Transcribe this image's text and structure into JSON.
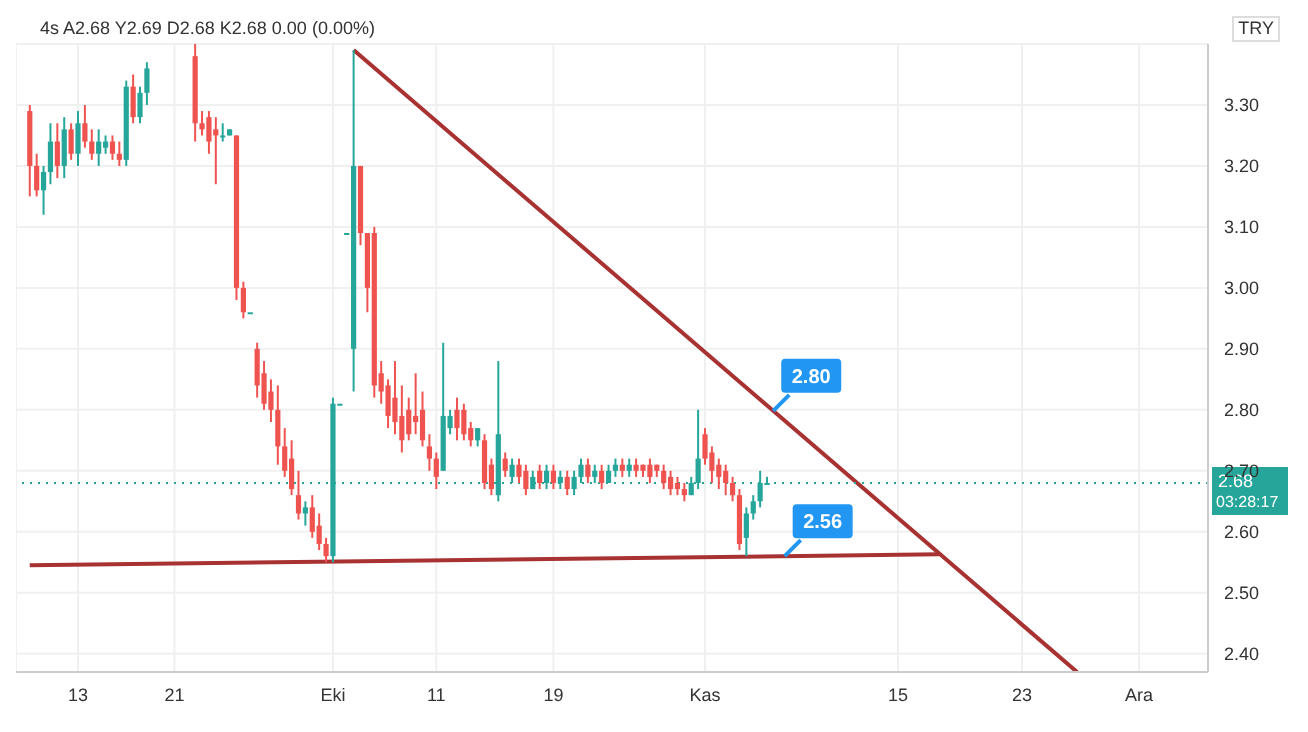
{
  "chart_data": {
    "type": "candlestick",
    "subtitle": "4s  A2.68 Y2.69 D2.68 K2.68 0.00 (0.00%)",
    "categories": [
      null,
      null,
      null,
      null,
      null,
      null,
      null,
      "13",
      null,
      null,
      null,
      null,
      null,
      null,
      null,
      null,
      null,
      null,
      null,
      null,
      null,
      "21",
      null,
      null,
      null,
      null,
      null,
      null,
      null,
      null,
      null,
      null,
      null,
      null,
      null,
      null,
      null,
      null,
      null,
      null,
      null,
      null,
      null,
      null,
      "Eki",
      null,
      null,
      null,
      null,
      null,
      null,
      null,
      null,
      null,
      null,
      null,
      null,
      null,
      null,
      "11",
      null,
      null,
      null,
      null,
      null,
      null,
      null,
      null,
      null,
      null,
      null,
      null,
      null,
      null,
      null,
      null,
      "19",
      null,
      null,
      null,
      null,
      null,
      null,
      null,
      null,
      null,
      null,
      null,
      null,
      null,
      null,
      null,
      null,
      null,
      null,
      null,
      null,
      null,
      "Kas",
      null,
      null,
      null,
      null,
      null,
      null,
      null,
      null,
      null,
      null,
      null,
      null,
      null,
      null,
      null,
      null,
      null,
      null,
      null,
      null,
      null,
      null,
      null,
      null,
      null,
      null,
      null,
      "15",
      null,
      null,
      null,
      null,
      null,
      null,
      null,
      null,
      null,
      null,
      null,
      null,
      null,
      null,
      null,
      null,
      null,
      "23",
      null,
      null,
      null,
      null,
      null,
      null,
      null,
      null,
      null,
      null,
      null,
      null,
      null,
      null,
      null,
      null,
      "Ara",
      null,
      null,
      null,
      null,
      null,
      null,
      null,
      null,
      null,
      null
    ],
    "ohlc": [
      [
        3.29,
        3.3,
        3.15,
        3.2
      ],
      [
        3.2,
        3.22,
        3.15,
        3.16
      ],
      [
        3.16,
        3.2,
        3.12,
        3.19
      ],
      [
        3.19,
        3.27,
        3.17,
        3.24
      ],
      [
        3.24,
        3.27,
        3.18,
        3.2
      ],
      [
        3.2,
        3.28,
        3.18,
        3.26
      ],
      [
        3.26,
        3.27,
        3.21,
        3.22
      ],
      [
        3.22,
        3.29,
        3.2,
        3.27
      ],
      [
        3.27,
        3.3,
        3.23,
        3.24
      ],
      [
        3.24,
        3.26,
        3.21,
        3.22
      ],
      [
        3.22,
        3.26,
        3.2,
        3.24
      ],
      [
        3.23,
        3.25,
        3.22,
        3.24
      ],
      [
        3.24,
        3.25,
        3.21,
        3.22
      ],
      [
        3.22,
        3.24,
        3.2,
        3.21
      ],
      [
        3.21,
        3.34,
        3.2,
        3.33
      ],
      [
        3.33,
        3.35,
        3.27,
        3.28
      ],
      [
        3.28,
        3.33,
        3.27,
        3.32
      ],
      [
        3.32,
        3.37,
        3.3,
        3.36
      ],
      null,
      null,
      null,
      null,
      null,
      null,
      [
        3.38,
        3.4,
        3.24,
        3.27
      ],
      [
        3.27,
        3.29,
        3.25,
        3.26
      ],
      [
        3.28,
        3.29,
        3.22,
        3.24
      ],
      [
        3.26,
        3.28,
        3.17,
        3.25
      ],
      [
        3.25,
        3.27,
        3.24,
        3.25
      ],
      [
        3.25,
        3.26,
        3.25,
        3.26
      ],
      [
        3.25,
        3.25,
        2.98,
        3.0
      ],
      [
        3.0,
        3.01,
        2.95,
        2.96
      ],
      [
        2.96,
        2.96,
        2.96,
        2.96
      ],
      [
        2.9,
        2.91,
        2.82,
        2.84
      ],
      [
        2.86,
        2.88,
        2.8,
        2.81
      ],
      [
        2.83,
        2.85,
        2.78,
        2.8
      ],
      [
        2.8,
        2.84,
        2.71,
        2.74
      ],
      [
        2.74,
        2.77,
        2.69,
        2.7
      ],
      [
        2.72,
        2.75,
        2.66,
        2.67
      ],
      [
        2.66,
        2.7,
        2.62,
        2.63
      ],
      [
        2.63,
        2.65,
        2.61,
        2.64
      ],
      [
        2.64,
        2.66,
        2.59,
        2.6
      ],
      [
        2.61,
        2.63,
        2.57,
        2.58
      ],
      [
        2.58,
        2.59,
        2.55,
        2.56
      ],
      [
        2.56,
        2.82,
        2.55,
        2.81
      ],
      [
        2.81,
        2.81,
        2.81,
        2.81
      ],
      [
        3.09,
        3.09,
        3.09,
        3.09
      ],
      [
        2.9,
        3.39,
        2.83,
        3.2
      ],
      [
        3.2,
        3.2,
        3.07,
        3.09
      ],
      [
        3.09,
        3.09,
        2.96,
        3.0
      ],
      [
        3.09,
        3.1,
        2.82,
        2.84
      ],
      [
        2.86,
        2.88,
        2.81,
        2.83
      ],
      [
        2.84,
        2.85,
        2.77,
        2.79
      ],
      [
        2.82,
        2.88,
        2.76,
        2.78
      ],
      [
        2.79,
        2.84,
        2.73,
        2.75
      ],
      [
        2.8,
        2.82,
        2.75,
        2.76
      ],
      [
        2.79,
        2.86,
        2.76,
        2.78
      ],
      [
        2.8,
        2.83,
        2.74,
        2.75
      ],
      [
        2.74,
        2.76,
        2.7,
        2.72
      ],
      [
        2.72,
        2.73,
        2.67,
        2.69
      ],
      [
        2.7,
        2.91,
        2.7,
        2.79
      ],
      [
        2.77,
        2.8,
        2.76,
        2.79
      ],
      [
        2.8,
        2.82,
        2.75,
        2.77
      ],
      [
        2.8,
        2.81,
        2.75,
        2.76
      ],
      [
        2.77,
        2.78,
        2.74,
        2.75
      ],
      [
        2.75,
        2.77,
        2.74,
        2.77
      ],
      [
        2.75,
        2.76,
        2.67,
        2.68
      ],
      [
        2.71,
        2.72,
        2.66,
        2.67
      ],
      [
        2.66,
        2.88,
        2.65,
        2.76
      ],
      [
        2.72,
        2.73,
        2.69,
        2.7
      ],
      [
        2.69,
        2.72,
        2.68,
        2.71
      ],
      [
        2.71,
        2.72,
        2.68,
        2.69
      ],
      [
        2.7,
        2.71,
        2.66,
        2.67
      ],
      [
        2.67,
        2.7,
        2.67,
        2.69
      ],
      [
        2.7,
        2.71,
        2.67,
        2.68
      ],
      [
        2.68,
        2.71,
        2.67,
        2.7
      ],
      [
        2.7,
        2.71,
        2.67,
        2.68
      ],
      [
        2.68,
        2.7,
        2.67,
        2.69
      ],
      [
        2.69,
        2.7,
        2.66,
        2.67
      ],
      [
        2.67,
        2.7,
        2.66,
        2.69
      ],
      [
        2.69,
        2.72,
        2.68,
        2.71
      ],
      [
        2.71,
        2.72,
        2.68,
        2.69
      ],
      [
        2.69,
        2.71,
        2.68,
        2.7
      ],
      [
        2.7,
        2.71,
        2.67,
        2.68
      ],
      [
        2.68,
        2.71,
        2.68,
        2.7
      ],
      [
        2.7,
        2.72,
        2.69,
        2.71
      ],
      [
        2.71,
        2.72,
        2.69,
        2.7
      ],
      [
        2.7,
        2.72,
        2.69,
        2.71
      ],
      [
        2.71,
        2.72,
        2.69,
        2.7
      ],
      [
        2.71,
        2.71,
        2.69,
        2.7
      ],
      [
        2.71,
        2.72,
        2.68,
        2.69
      ],
      [
        2.71,
        2.71,
        2.69,
        2.7
      ],
      [
        2.7,
        2.71,
        2.67,
        2.68
      ],
      [
        2.69,
        2.7,
        2.66,
        2.67
      ],
      [
        2.68,
        2.69,
        2.66,
        2.67
      ],
      [
        2.67,
        2.68,
        2.65,
        2.66
      ],
      [
        2.66,
        2.69,
        2.66,
        2.68
      ],
      [
        2.68,
        2.8,
        2.67,
        2.72
      ],
      [
        2.76,
        2.77,
        2.71,
        2.72
      ],
      [
        2.73,
        2.74,
        2.68,
        2.7
      ],
      [
        2.71,
        2.72,
        2.67,
        2.69
      ],
      [
        2.7,
        2.71,
        2.66,
        2.68
      ],
      [
        2.68,
        2.69,
        2.65,
        2.66
      ],
      [
        2.66,
        2.67,
        2.57,
        2.58
      ],
      [
        2.59,
        2.64,
        2.56,
        2.63
      ],
      [
        2.63,
        2.66,
        2.62,
        2.65
      ],
      [
        2.65,
        2.7,
        2.64,
        2.68
      ],
      [
        2.68,
        2.69,
        2.68,
        2.68
      ],
      null,
      null,
      null,
      null,
      null,
      null,
      null,
      null,
      null,
      null,
      null,
      null,
      null,
      null,
      null,
      null,
      null,
      null,
      null,
      null,
      null,
      null,
      null,
      null,
      null,
      null,
      null,
      null,
      null,
      null,
      null,
      null,
      null,
      null,
      null,
      null,
      null,
      null,
      null,
      null,
      null,
      null,
      null,
      null,
      null,
      null,
      null,
      null,
      null,
      null,
      null,
      null,
      null,
      null,
      null,
      null,
      null,
      null,
      null,
      null,
      null,
      null,
      null,
      null
    ],
    "colors": [
      "#ef5350",
      "#ef5350",
      "#26a69a",
      "#26a69a",
      "#ef5350",
      "#26a69a",
      "#ef5350",
      "#26a69a",
      "#ef5350",
      "#ef5350",
      "#26a69a",
      "#26a69a",
      "#ef5350",
      "#ef5350",
      "#26a69a",
      "#ef5350",
      "#26a69a",
      "#26a69a",
      null,
      null,
      null,
      null,
      null,
      null,
      "#ef5350",
      "#ef5350",
      "#ef5350",
      "#ef5350",
      "#26a69a",
      "#26a69a",
      "#ef5350",
      "#ef5350",
      "#26a69a",
      "#ef5350",
      "#ef5350",
      "#ef5350",
      "#ef5350",
      "#ef5350",
      "#ef5350",
      "#ef5350",
      "#26a69a",
      "#ef5350",
      "#ef5350",
      "#ef5350",
      "#26a69a",
      "#26a69a",
      "#26a69a",
      "#26a69a",
      "#ef5350",
      "#ef5350",
      "#ef5350",
      "#ef5350",
      "#ef5350",
      "#ef5350",
      "#ef5350",
      "#ef5350",
      "#ef5350",
      "#ef5350",
      "#ef5350",
      "#ef5350",
      "#26a69a",
      "#26a69a",
      "#ef5350",
      "#ef5350",
      "#ef5350",
      "#26a69a",
      "#ef5350",
      "#ef5350",
      "#26a69a",
      "#ef5350",
      "#26a69a",
      "#ef5350",
      "#ef5350",
      "#26a69a",
      "#ef5350",
      "#26a69a",
      "#ef5350",
      "#26a69a",
      "#ef5350",
      "#26a69a",
      "#26a69a",
      "#ef5350",
      "#26a69a",
      "#ef5350",
      "#26a69a",
      "#26a69a",
      "#ef5350",
      "#26a69a",
      "#ef5350",
      "#ef5350",
      "#ef5350",
      "#ef5350",
      "#ef5350",
      "#ef5350",
      "#ef5350",
      "#ef5350",
      "#26a69a",
      "#26a69a",
      "#ef5350",
      "#ef5350",
      "#ef5350",
      "#ef5350",
      "#ef5350",
      "#ef5350",
      "#26a69a",
      "#26a69a",
      "#26a69a",
      "#26a69a",
      null,
      null,
      null,
      null,
      null,
      null,
      null,
      null,
      null,
      null,
      null,
      null,
      null,
      null,
      null,
      null,
      null,
      null,
      null,
      null,
      null,
      null,
      null,
      null,
      null,
      null,
      null,
      null,
      null,
      null,
      null,
      null,
      null,
      null,
      null,
      null,
      null,
      null,
      null,
      null,
      null,
      null,
      null,
      null,
      null,
      null,
      null,
      null,
      null,
      null,
      null,
      null,
      null,
      null,
      null,
      null,
      null,
      null,
      null,
      null,
      null,
      null,
      null,
      null
    ],
    "series": [
      {
        "type": "line",
        "color": "#a83232",
        "values": [
          null,
          null,
          null,
          null,
          null,
          null,
          null,
          null,
          null,
          null,
          null,
          null,
          null,
          null,
          null,
          null,
          null,
          null,
          null,
          null,
          null,
          null,
          null,
          null,
          null,
          null,
          null,
          null,
          null,
          null,
          null,
          null,
          null,
          null,
          null,
          null,
          null,
          null,
          null,
          null,
          null,
          null,
          null,
          null,
          null,
          null,
          null,
          3.39,
          null,
          null,
          null,
          null,
          null,
          null,
          null,
          null,
          null,
          null,
          null,
          null,
          null,
          null,
          null,
          null,
          null,
          null,
          null,
          null,
          null,
          null,
          null,
          null,
          null,
          null,
          null,
          null,
          null,
          null,
          null,
          null,
          null,
          null,
          null,
          null,
          null,
          null,
          null,
          null,
          null,
          null,
          null,
          null,
          null,
          null,
          null,
          null,
          null,
          null,
          null,
          null,
          null,
          null,
          null,
          null,
          null,
          null,
          null,
          null,
          null,
          null,
          null,
          null,
          null,
          null,
          null,
          null,
          null,
          null,
          null,
          null,
          null,
          null,
          null,
          null,
          null,
          null,
          null,
          null,
          null,
          null,
          null,
          null,
          null,
          null,
          null,
          null,
          null,
          null,
          null,
          null,
          null,
          null,
          null,
          null,
          null,
          null,
          null,
          null,
          null,
          null,
          null,
          null,
          2.37,
          null,
          null,
          null,
          null,
          null,
          null,
          null,
          null,
          null,
          null,
          null,
          null,
          null,
          null,
          null,
          null,
          null,
          null,
          null
        ]
      },
      {
        "type": "line",
        "color": "#a83232",
        "values": [
          2.545,
          null,
          null,
          null,
          null,
          null,
          null,
          null,
          null,
          null,
          null,
          null,
          null,
          null,
          null,
          null,
          null,
          null,
          null,
          null,
          null,
          null,
          null,
          null,
          null,
          null,
          null,
          null,
          null,
          null,
          null,
          null,
          null,
          null,
          null,
          null,
          null,
          null,
          null,
          null,
          null,
          null,
          null,
          null,
          null,
          null,
          null,
          null,
          null,
          null,
          null,
          null,
          null,
          null,
          null,
          null,
          null,
          null,
          null,
          null,
          null,
          null,
          null,
          null,
          null,
          null,
          null,
          null,
          null,
          null,
          null,
          null,
          null,
          null,
          null,
          null,
          null,
          null,
          null,
          null,
          null,
          null,
          null,
          null,
          null,
          null,
          null,
          null,
          null,
          null,
          null,
          null,
          null,
          null,
          null,
          null,
          null,
          null,
          null,
          null,
          null,
          null,
          null,
          null,
          null,
          null,
          null,
          null,
          null,
          null,
          null,
          null,
          null,
          null,
          null,
          null,
          null,
          null,
          null,
          null,
          null,
          null,
          null,
          null,
          null,
          null,
          null,
          null,
          null,
          null,
          null,
          null,
          2.563,
          null,
          null,
          null,
          null,
          null,
          null,
          null,
          null,
          null,
          null,
          null,
          null,
          null,
          null,
          null,
          null,
          null,
          null,
          null,
          null,
          null,
          null,
          null,
          null,
          null,
          null,
          null,
          null,
          null,
          null,
          null,
          null,
          null,
          null,
          null,
          null,
          null,
          null,
          null
        ]
      }
    ],
    "ylim": [
      2.37,
      3.4
    ],
    "yticks": [
      {
        "value": 2.4,
        "label": "2.40"
      },
      {
        "value": 2.5,
        "label": "2.50"
      },
      {
        "value": 2.6,
        "label": "2.60"
      },
      {
        "value": 2.7,
        "label": "2.70"
      },
      {
        "value": 2.8,
        "label": "2.80"
      },
      {
        "value": 2.9,
        "label": "2.90"
      },
      {
        "value": 3.0,
        "label": "3.00"
      },
      {
        "value": 3.1,
        "label": "3.10"
      },
      {
        "value": 3.2,
        "label": "3.20"
      },
      {
        "value": 3.3,
        "label": "3.30"
      }
    ],
    "ref_lines": [
      {
        "axis": "y",
        "value": 2.68,
        "label": "2.68",
        "color": "#26a69a",
        "line_style": "dotted"
      }
    ],
    "annotations": [
      "2.80",
      "2.56",
      "03:28:17",
      "TRY"
    ],
    "grid": true
  }
}
